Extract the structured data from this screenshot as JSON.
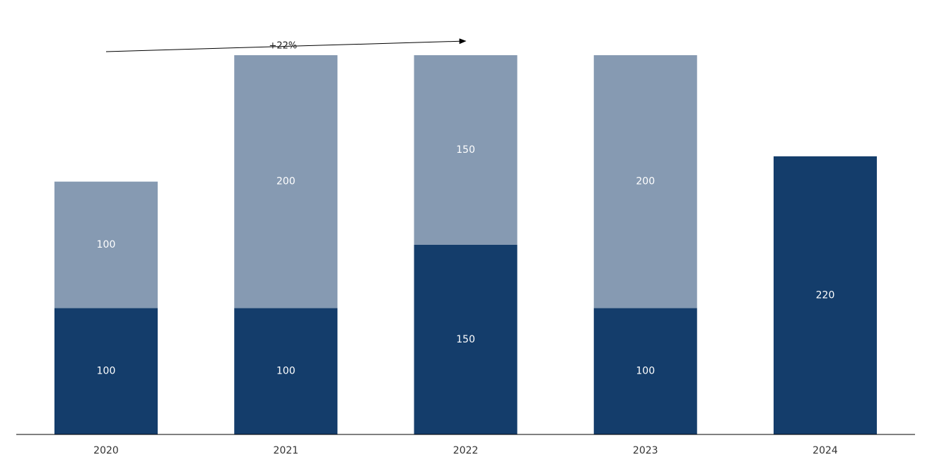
{
  "chart_data": {
    "type": "bar",
    "stacked": true,
    "categories": [
      "2020",
      "2021",
      "2022",
      "2023",
      "2024"
    ],
    "series": [
      {
        "values": [
          100,
          100,
          150,
          100,
          220
        ],
        "color": "#143D6B"
      },
      {
        "values": [
          100,
          200,
          150,
          200,
          0
        ],
        "color": "#869AB2"
      }
    ],
    "ylim": [
      0,
      300
    ],
    "grid": false,
    "annotation": {
      "text": "+22%",
      "from_category": "2020",
      "to_category": "2022"
    }
  }
}
